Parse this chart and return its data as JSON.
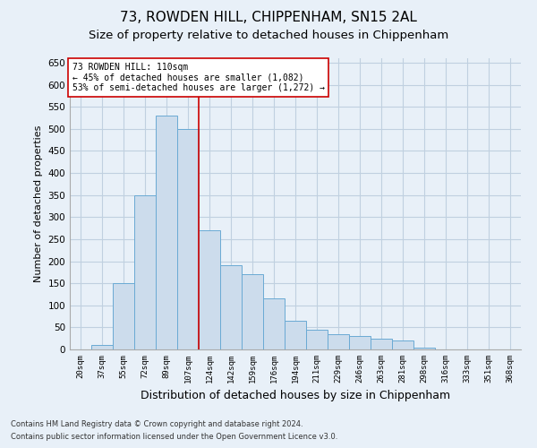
{
  "title": "73, ROWDEN HILL, CHIPPENHAM, SN15 2AL",
  "subtitle": "Size of property relative to detached houses in Chippenham",
  "xlabel": "Distribution of detached houses by size in Chippenham",
  "ylabel": "Number of detached properties",
  "footnote1": "Contains HM Land Registry data © Crown copyright and database right 2024.",
  "footnote2": "Contains public sector information licensed under the Open Government Licence v3.0.",
  "annotation_line1": "73 ROWDEN HILL: 110sqm",
  "annotation_line2": "← 45% of detached houses are smaller (1,082)",
  "annotation_line3": "53% of semi-detached houses are larger (1,272) →",
  "bar_labels": [
    "20sqm",
    "37sqm",
    "55sqm",
    "72sqm",
    "89sqm",
    "107sqm",
    "124sqm",
    "142sqm",
    "159sqm",
    "176sqm",
    "194sqm",
    "211sqm",
    "229sqm",
    "246sqm",
    "263sqm",
    "281sqm",
    "298sqm",
    "316sqm",
    "333sqm",
    "351sqm",
    "368sqm"
  ],
  "bar_values": [
    0,
    10,
    150,
    350,
    530,
    500,
    270,
    190,
    170,
    115,
    65,
    45,
    35,
    30,
    25,
    20,
    5,
    0,
    0,
    0,
    0
  ],
  "bar_color": "#ccdcec",
  "bar_edgecolor": "#6aaad4",
  "bar_linewidth": 0.7,
  "vline_x": 5.5,
  "vline_color": "#cc0000",
  "vline_linewidth": 1.2,
  "ylim": [
    0,
    660
  ],
  "yticks": [
    0,
    50,
    100,
    150,
    200,
    250,
    300,
    350,
    400,
    450,
    500,
    550,
    600,
    650
  ],
  "grid_color": "#c0d0e0",
  "background_color": "#e8f0f8",
  "title_fontsize": 11,
  "subtitle_fontsize": 9.5,
  "ylabel_fontsize": 8,
  "xlabel_fontsize": 9
}
